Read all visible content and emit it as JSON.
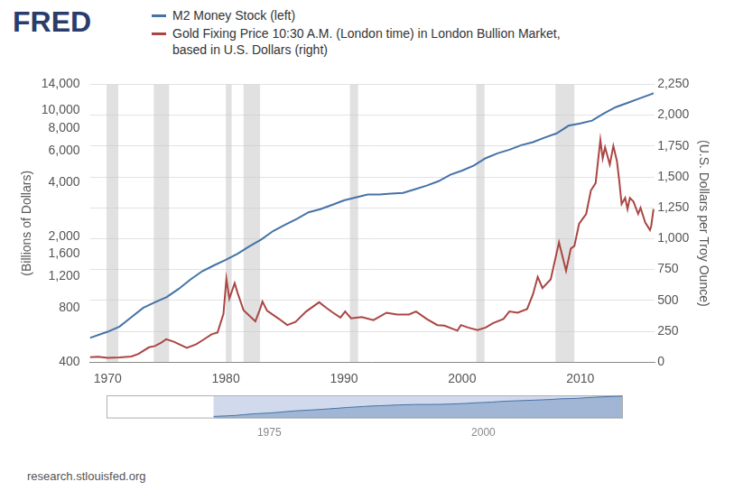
{
  "chart_data": {
    "type": "line",
    "logo": "FRED",
    "source": "research.stlouisfed.org",
    "y_label": "(Billions of Dollars)",
    "y2_label": "(U.S. Dollars per Troy Ounce)",
    "log": "y",
    "grid": true,
    "legend": "top-left",
    "xlim": [
      1968.5,
      2016.3
    ],
    "xticks": [
      1970,
      1980,
      1990,
      2000,
      2010
    ],
    "ylim": [
      400,
      14000
    ],
    "yticks": [
      400,
      800,
      {
        "value": 1200,
        "label": "1,200"
      },
      {
        "value": 1600,
        "label": "1,600"
      },
      {
        "value": 2000,
        "label": "2,000"
      },
      {
        "value": 4000,
        "label": "4,000"
      },
      {
        "value": 6000,
        "label": "6,000"
      },
      {
        "value": 8000,
        "label": "8,000"
      },
      {
        "value": 10000,
        "label": "10,000"
      },
      {
        "value": 14000,
        "label": "14,000"
      }
    ],
    "y2lim": [
      0,
      2250
    ],
    "y2ticks": [
      0,
      250,
      500,
      750,
      {
        "value": 1000,
        "label": "1,000"
      },
      {
        "value": 1250,
        "label": "1,250"
      },
      {
        "value": 1500,
        "label": "1,500"
      },
      {
        "value": 1750,
        "label": "1,750"
      },
      {
        "value": 2000,
        "label": "2,000"
      },
      {
        "value": 2250,
        "label": "2,250"
      }
    ],
    "recessions": [
      [
        1969.9,
        1970.9
      ],
      [
        1973.9,
        1975.2
      ],
      [
        1980.0,
        1980.5
      ],
      [
        1981.5,
        1982.9
      ],
      [
        1990.5,
        1991.2
      ],
      [
        2001.2,
        2001.9
      ],
      [
        2007.9,
        2009.5
      ]
    ],
    "navigator": {
      "xlim": [
        1956,
        2016.3
      ],
      "xticks": [
        1975,
        2000
      ]
    },
    "series": [
      {
        "name": "M2 Money Stock (left)",
        "color": "#4572a7",
        "axis": "y",
        "x": [
          1968.5,
          1970,
          1971,
          1972,
          1973,
          1974,
          1975,
          1976,
          1977,
          1978,
          1979,
          1980,
          1981,
          1982,
          1983,
          1984,
          1985,
          1986,
          1987,
          1988,
          1989,
          1990,
          1991,
          1992,
          1993,
          1994,
          1995,
          1996,
          1997,
          1998,
          1999,
          2000,
          2001,
          2002,
          2003,
          2004,
          2005,
          2006,
          2007,
          2008,
          2009,
          2010,
          2011,
          2012,
          2013,
          2014,
          2015,
          2016,
          2016.2
        ],
        "values": [
          545,
          590,
          630,
          710,
          800,
          860,
          920,
          1020,
          1150,
          1280,
          1380,
          1480,
          1600,
          1760,
          1920,
          2140,
          2320,
          2500,
          2720,
          2830,
          2990,
          3170,
          3290,
          3420,
          3420,
          3460,
          3490,
          3650,
          3830,
          4050,
          4400,
          4640,
          4950,
          5440,
          5790,
          6060,
          6420,
          6680,
          7080,
          7470,
          8240,
          8480,
          8800,
          9660,
          10450,
          11030,
          11680,
          12340,
          12500
        ]
      },
      {
        "name": "Gold Fixing Price 10:30 A.M. (London time) in London Bullion Market, based in U.S. Dollars (right)",
        "color": "#aa4643",
        "axis": "y2",
        "x": [
          1968.5,
          1969.2,
          1970.0,
          1971.0,
          1972.0,
          1972.6,
          1973.5,
          1974.0,
          1974.5,
          1974.95,
          1975.6,
          1976.7,
          1977.5,
          1978.0,
          1978.8,
          1979.3,
          1979.8,
          1980.05,
          1980.3,
          1980.75,
          1981.0,
          1981.5,
          1982.5,
          1982.9,
          1983.1,
          1983.5,
          1984.5,
          1985.2,
          1985.9,
          1986.8,
          1987.9,
          1988.5,
          1989.0,
          1989.7,
          1990.1,
          1990.6,
          1991.5,
          1992.5,
          1993.6,
          1994.5,
          1995.5,
          1996.1,
          1997.0,
          1997.9,
          1998.5,
          1999.6,
          1999.9,
          2000.5,
          2001.3,
          2002.0,
          2002.6,
          2003.5,
          2004.0,
          2004.7,
          2005.5,
          2006.0,
          2006.4,
          2006.8,
          2007.5,
          2008.2,
          2008.8,
          2009.2,
          2009.5,
          2009.9,
          2010.5,
          2010.9,
          2011.3,
          2011.7,
          2011.9,
          2012.1,
          2012.5,
          2012.8,
          2013.1,
          2013.3,
          2013.5,
          2013.8,
          2014.0,
          2014.2,
          2014.5,
          2014.9,
          2015.1,
          2015.5,
          2015.9,
          2016.0,
          2016.2
        ],
        "values": [
          40,
          43,
          35,
          38,
          46,
          66,
          120,
          130,
          155,
          185,
          165,
          115,
          145,
          175,
          225,
          240,
          390,
          675,
          515,
          640,
          560,
          420,
          330,
          430,
          490,
          415,
          350,
          300,
          325,
          410,
          485,
          440,
          405,
          360,
          410,
          355,
          365,
          340,
          400,
          385,
          385,
          410,
          350,
          300,
          295,
          255,
          300,
          280,
          260,
          280,
          315,
          350,
          410,
          400,
          430,
          550,
          690,
          600,
          670,
          970,
          740,
          920,
          940,
          1120,
          1200,
          1390,
          1450,
          1800,
          1650,
          1740,
          1600,
          1750,
          1630,
          1470,
          1280,
          1330,
          1240,
          1330,
          1300,
          1200,
          1250,
          1130,
          1070,
          1100,
          1240
        ]
      }
    ]
  }
}
